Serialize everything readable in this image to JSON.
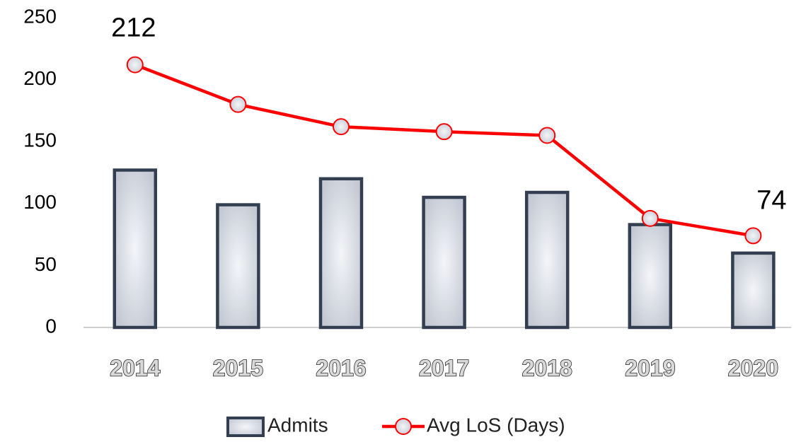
{
  "chart_data": {
    "type": "bar",
    "categories": [
      "2014",
      "2015",
      "2016",
      "2017",
      "2018",
      "2019",
      "2020"
    ],
    "series": [
      {
        "name": "Admits",
        "type": "bar",
        "color": "#333f50",
        "values": [
          127,
          99,
          120,
          105,
          109,
          83,
          60
        ]
      },
      {
        "name": "Avg LoS (Days)",
        "type": "line",
        "color": "#ff0000",
        "values": [
          212,
          180,
          162,
          158,
          155,
          88,
          74
        ],
        "value_labels": [
          "212",
          null,
          null,
          null,
          null,
          null,
          "74"
        ]
      }
    ],
    "ylim": [
      0,
      250
    ],
    "yticks": [
      0,
      50,
      100,
      150,
      200,
      250
    ],
    "grid": false,
    "legend": "bottom"
  }
}
